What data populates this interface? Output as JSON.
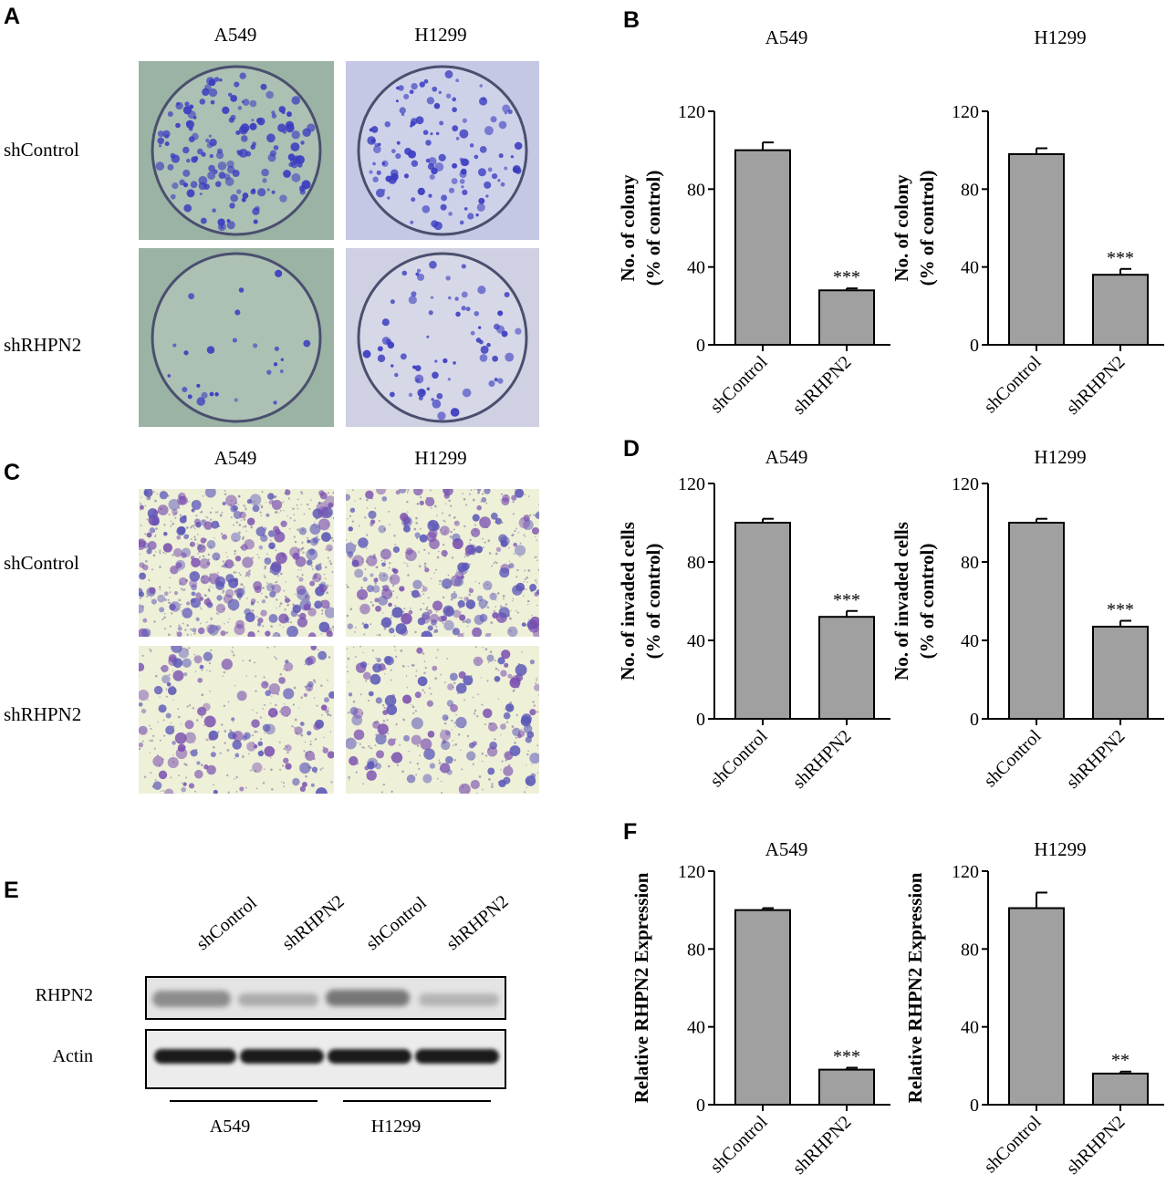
{
  "panels": {
    "A": {
      "letter": "A",
      "columns": [
        "A549",
        "H1299"
      ],
      "rows": [
        "shControl",
        "shRHPN2"
      ]
    },
    "C": {
      "letter": "C",
      "columns": [
        "A549",
        "H1299"
      ],
      "rows": [
        "shControl",
        "shRHPN2"
      ]
    },
    "E": {
      "letter": "E",
      "lanes": [
        "shControl",
        "shRHPN2",
        "shControl",
        "shRHPN2"
      ],
      "bands": [
        "RHPN2",
        "Actin"
      ],
      "groups": [
        "A549",
        "H1299"
      ]
    },
    "B": {
      "letter": "B"
    },
    "D": {
      "letter": "D"
    },
    "F": {
      "letter": "F"
    }
  },
  "colors": {
    "bar": "#a0a0a0",
    "axis": "#000000",
    "colony_stain": "#3a3cc0",
    "invasion_stain": "#7a4fb0"
  },
  "chart_data": [
    {
      "id": "B-A549",
      "type": "bar",
      "title": "A549",
      "ylabel": [
        "No. of colony",
        "(% of control)"
      ],
      "categories": [
        "shControl",
        "shRHPN2"
      ],
      "values": [
        100,
        28
      ],
      "errors": [
        4,
        1
      ],
      "significance": [
        "",
        "***"
      ],
      "ylim": [
        0,
        120
      ],
      "yticks": [
        0,
        40,
        80,
        120
      ]
    },
    {
      "id": "B-H1299",
      "type": "bar",
      "title": "H1299",
      "ylabel": [
        "No. of colony",
        "(% of control)"
      ],
      "categories": [
        "shControl",
        "shRHPN2"
      ],
      "values": [
        98,
        36
      ],
      "errors": [
        3,
        3
      ],
      "significance": [
        "",
        "***"
      ],
      "ylim": [
        0,
        120
      ],
      "yticks": [
        0,
        40,
        80,
        120
      ]
    },
    {
      "id": "D-A549",
      "type": "bar",
      "title": "A549",
      "ylabel": [
        "No. of invaded cells",
        "(% of control)"
      ],
      "categories": [
        "shControl",
        "shRHPN2"
      ],
      "values": [
        100,
        52
      ],
      "errors": [
        2,
        3
      ],
      "significance": [
        "",
        "***"
      ],
      "ylim": [
        0,
        120
      ],
      "yticks": [
        0,
        40,
        80,
        120
      ]
    },
    {
      "id": "D-H1299",
      "type": "bar",
      "title": "H1299",
      "ylabel": [
        "No. of invaded cells",
        "(% of control)"
      ],
      "categories": [
        "shControl",
        "shRHPN2"
      ],
      "values": [
        100,
        47
      ],
      "errors": [
        2,
        3
      ],
      "significance": [
        "",
        "***"
      ],
      "ylim": [
        0,
        120
      ],
      "yticks": [
        0,
        40,
        80,
        120
      ]
    },
    {
      "id": "F-A549",
      "type": "bar",
      "title": "A549",
      "ylabel": [
        "Relative RHPN2 Expression"
      ],
      "categories": [
        "shControl",
        "shRHPN2"
      ],
      "values": [
        100,
        18
      ],
      "errors": [
        1,
        1
      ],
      "significance": [
        "",
        "***"
      ],
      "ylim": [
        0,
        120
      ],
      "yticks": [
        0,
        40,
        80,
        120
      ]
    },
    {
      "id": "F-H1299",
      "type": "bar",
      "title": "H1299",
      "ylabel": [
        "Relative RHPN2 Expression"
      ],
      "categories": [
        "shControl",
        "shRHPN2"
      ],
      "values": [
        101,
        16
      ],
      "errors": [
        8,
        1
      ],
      "significance": [
        "",
        "**"
      ],
      "ylim": [
        0,
        120
      ],
      "yticks": [
        0,
        40,
        80,
        120
      ]
    }
  ]
}
